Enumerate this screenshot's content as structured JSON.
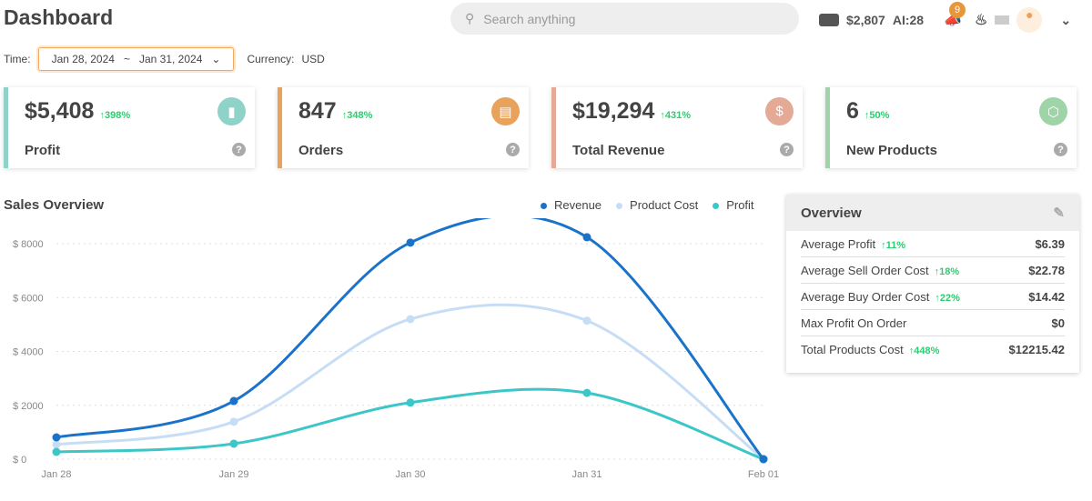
{
  "header": {
    "title": "Dashboard",
    "search_placeholder": "Search anything",
    "balance": "$2,807",
    "ai": "AI:28",
    "notifications": "9"
  },
  "filters": {
    "time_label": "Time:",
    "date_from": "Jan 28, 2024",
    "sep": "~",
    "date_to": "Jan 31, 2024",
    "currency_label": "Currency:",
    "currency": "USD"
  },
  "cards": [
    {
      "value": "$5,408",
      "change": "↑398%",
      "label": "Profit",
      "color": "#8fd3c8",
      "icon": "bar-chart-icon"
    },
    {
      "value": "847",
      "change": "↑348%",
      "label": "Orders",
      "color": "#e8a25c",
      "icon": "clipboard-icon"
    },
    {
      "value": "$19,294",
      "change": "↑431%",
      "label": "Total Revenue",
      "color": "#e4aa96",
      "icon": "dollar-icon"
    },
    {
      "value": "6",
      "change": "↑50%",
      "label": "New Products",
      "color": "#9fd4a8",
      "icon": "box-icon"
    }
  ],
  "overview": {
    "title": "Overview",
    "rows": [
      {
        "label": "Average Profit",
        "change": "↑11%",
        "value": "$6.39"
      },
      {
        "label": "Average Sell Order Cost",
        "change": "↑18%",
        "value": "$22.78"
      },
      {
        "label": "Average Buy Order Cost",
        "change": "↑22%",
        "value": "$14.42"
      },
      {
        "label": "Max Profit On Order",
        "change": "",
        "value": "$0"
      },
      {
        "label": "Total Products Cost",
        "change": "↑448%",
        "value": "$12215.42"
      }
    ]
  },
  "chart_data": {
    "type": "line",
    "title": "Sales Overview",
    "categories": [
      "Jan 28",
      "Jan 29",
      "Jan 30",
      "Jan 31",
      "Feb 01"
    ],
    "yticks": [
      "$ 0",
      "$ 2000",
      "$ 4000",
      "$ 6000",
      "$ 8000"
    ],
    "ylim": [
      0,
      8000
    ],
    "grid": true,
    "legend": "top-right",
    "series": [
      {
        "name": "Revenue",
        "color": "#1a73c9",
        "values": [
          810,
          2160,
          8040,
          8240,
          0
        ]
      },
      {
        "name": "Product Cost",
        "color": "#c6ddf5",
        "values": [
          540,
          1390,
          5200,
          5140,
          0
        ]
      },
      {
        "name": "Profit",
        "color": "#3cc6c8",
        "values": [
          270,
          575,
          2100,
          2460,
          0
        ]
      }
    ]
  }
}
